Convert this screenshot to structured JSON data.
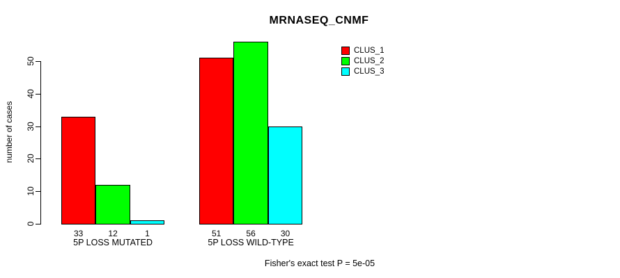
{
  "chart_data": {
    "type": "bar",
    "grouped": true,
    "title": "MRNASEQ_CNMF",
    "ylabel": "number of cases",
    "xlabel": "",
    "categories": [
      "5P LOSS MUTATED",
      "5P LOSS WILD-TYPE"
    ],
    "series": [
      {
        "name": "CLUS_1",
        "color": "#ff0000",
        "values": [
          33,
          51
        ]
      },
      {
        "name": "CLUS_2",
        "color": "#00ff00",
        "values": [
          12,
          56
        ]
      },
      {
        "name": "CLUS_3",
        "color": "#00ffff",
        "values": [
          1,
          30
        ]
      }
    ],
    "bar_value_labels": [
      [
        33,
        12,
        1
      ],
      [
        51,
        56,
        30
      ]
    ],
    "yticks": [
      0,
      10,
      20,
      30,
      40,
      50
    ],
    "ylim": [
      0,
      50
    ],
    "grid": false,
    "legend_position": "top-right",
    "bar_border_color": "#000000",
    "annotation": "Fisher's exact test P = 5e-05"
  }
}
